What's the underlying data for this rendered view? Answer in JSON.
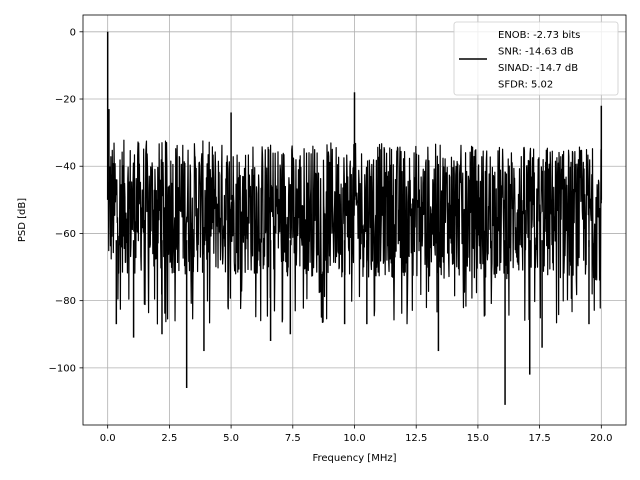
{
  "chart_data": {
    "type": "line",
    "title": "",
    "xlabel": "Frequency [MHz]",
    "ylabel": "PSD [dB]",
    "xlim": [
      -1.0,
      21.0
    ],
    "ylim": [
      -117,
      5
    ],
    "x_ticks": [
      0.0,
      2.5,
      5.0,
      7.5,
      10.0,
      12.5,
      15.0,
      17.5,
      20.0
    ],
    "x_tick_labels": [
      "0.0",
      "2.5",
      "5.0",
      "7.5",
      "10.0",
      "12.5",
      "15.0",
      "17.5",
      "20.0"
    ],
    "y_ticks": [
      0,
      -20,
      -40,
      -60,
      -80,
      -100
    ],
    "y_tick_labels": [
      "0",
      "−20",
      "−40",
      "−60",
      "−80",
      "−100"
    ],
    "grid": true,
    "legend_position": "top-right",
    "legend_entries": [
      "ENOB: -2.73 bits",
      "SNR: -14.63 dB",
      "SINAD: -14.7 dB",
      "SFDR: 5.02"
    ],
    "series": [
      {
        "color": "#000000",
        "noise_floor_band_db": [
          -72,
          -32
        ],
        "spikes": [
          {
            "x": 0.0,
            "y": 0
          },
          {
            "x": 0.05,
            "y": -23
          },
          {
            "x": 5.0,
            "y": -24
          },
          {
            "x": 10.0,
            "y": -18
          },
          {
            "x": 20.0,
            "y": -22
          }
        ],
        "dips": [
          {
            "x": 0.35,
            "y": -87
          },
          {
            "x": 1.05,
            "y": -91
          },
          {
            "x": 2.2,
            "y": -90
          },
          {
            "x": 3.2,
            "y": -106
          },
          {
            "x": 3.9,
            "y": -95
          },
          {
            "x": 6.6,
            "y": -92
          },
          {
            "x": 7.4,
            "y": -90
          },
          {
            "x": 9.6,
            "y": -87
          },
          {
            "x": 10.5,
            "y": -87
          },
          {
            "x": 13.4,
            "y": -95
          },
          {
            "x": 16.1,
            "y": -111
          },
          {
            "x": 17.1,
            "y": -102
          },
          {
            "x": 17.6,
            "y": -94
          },
          {
            "x": 19.5,
            "y": -87
          }
        ]
      }
    ]
  }
}
